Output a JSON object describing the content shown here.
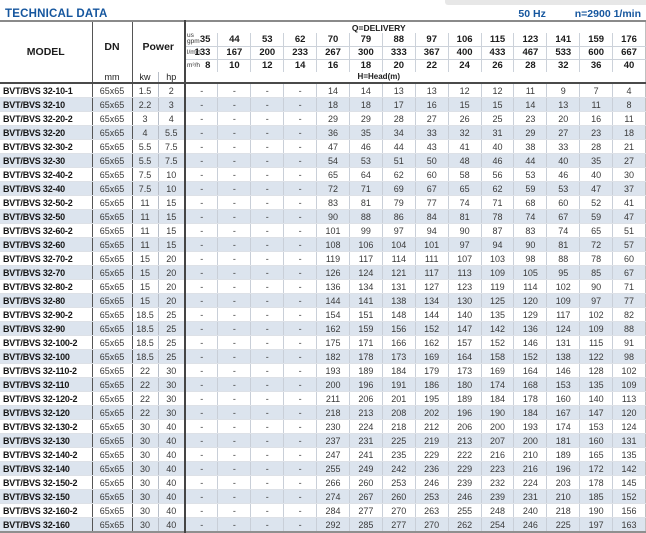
{
  "page": {
    "title": "TECHNICAL DATA",
    "frequency": "50 Hz",
    "speed": "n=2900 1/min",
    "accent_color": "#15569e"
  },
  "table": {
    "header": {
      "model": "MODEL",
      "dn": "DN",
      "power": "Power",
      "mm": "mm",
      "kw": "kw",
      "hp": "hp",
      "delivery_label": "Q=DELIVERY",
      "head_label": "H=Head(m)",
      "units": {
        "gpm": [
          "us",
          "gpm"
        ],
        "lmin": [
          "l/min"
        ],
        "m3h": [
          "m³/h"
        ]
      },
      "gpm": [
        35,
        44,
        53,
        62,
        70,
        79,
        88,
        97,
        106,
        115,
        123,
        141,
        159,
        176
      ],
      "lmin": [
        133,
        167,
        200,
        233,
        267,
        300,
        333,
        367,
        400,
        433,
        467,
        533,
        600,
        667
      ],
      "m3h": [
        8,
        10,
        12,
        14,
        16,
        18,
        20,
        22,
        24,
        26,
        28,
        32,
        36,
        40
      ]
    },
    "rows": [
      {
        "model": "BVT/BVS 32-10-1",
        "dn": "65x65",
        "kw": "1.5",
        "hp": "2",
        "heads": [
          "-",
          "-",
          "-",
          "-",
          14,
          14,
          13,
          13,
          12,
          12,
          11,
          9,
          7,
          4
        ]
      },
      {
        "model": "BVT/BVS 32-10",
        "dn": "65x65",
        "kw": "2.2",
        "hp": "3",
        "heads": [
          "-",
          "-",
          "-",
          "-",
          18,
          18,
          17,
          16,
          15,
          15,
          14,
          13,
          11,
          8
        ]
      },
      {
        "model": "BVT/BVS 32-20-2",
        "dn": "65x65",
        "kw": "3",
        "hp": "4",
        "heads": [
          "-",
          "-",
          "-",
          "-",
          29,
          29,
          28,
          27,
          26,
          25,
          23,
          20,
          16,
          11
        ]
      },
      {
        "model": "BVT/BVS 32-20",
        "dn": "65x65",
        "kw": "4",
        "hp": "5.5",
        "heads": [
          "-",
          "-",
          "-",
          "-",
          36,
          35,
          34,
          33,
          32,
          31,
          29,
          27,
          23,
          18
        ]
      },
      {
        "model": "BVT/BVS 32-30-2",
        "dn": "65x65",
        "kw": "5.5",
        "hp": "7.5",
        "heads": [
          "-",
          "-",
          "-",
          "-",
          47,
          46,
          44,
          43,
          41,
          40,
          38,
          33,
          28,
          21
        ]
      },
      {
        "model": "BVT/BVS 32-30",
        "dn": "65x65",
        "kw": "5.5",
        "hp": "7.5",
        "heads": [
          "-",
          "-",
          "-",
          "-",
          54,
          53,
          51,
          50,
          48,
          46,
          44,
          40,
          35,
          27
        ]
      },
      {
        "model": "BVT/BVS 32-40-2",
        "dn": "65x65",
        "kw": "7.5",
        "hp": "10",
        "heads": [
          "-",
          "-",
          "-",
          "-",
          65,
          64,
          62,
          60,
          58,
          56,
          53,
          46,
          40,
          30
        ]
      },
      {
        "model": "BVT/BVS 32-40",
        "dn": "65x65",
        "kw": "7.5",
        "hp": "10",
        "heads": [
          "-",
          "-",
          "-",
          "-",
          72,
          71,
          69,
          67,
          65,
          62,
          59,
          53,
          47,
          37
        ]
      },
      {
        "model": "BVT/BVS 32-50-2",
        "dn": "65x65",
        "kw": "11",
        "hp": "15",
        "heads": [
          "-",
          "-",
          "-",
          "-",
          83,
          81,
          79,
          77,
          74,
          71,
          68,
          60,
          52,
          41
        ]
      },
      {
        "model": "BVT/BVS 32-50",
        "dn": "65x65",
        "kw": "11",
        "hp": "15",
        "heads": [
          "-",
          "-",
          "-",
          "-",
          90,
          88,
          86,
          84,
          81,
          78,
          74,
          67,
          59,
          47
        ]
      },
      {
        "model": "BVT/BVS 32-60-2",
        "dn": "65x65",
        "kw": "11",
        "hp": "15",
        "heads": [
          "-",
          "-",
          "-",
          "-",
          101,
          99,
          97,
          94,
          90,
          87,
          83,
          74,
          65,
          51
        ]
      },
      {
        "model": "BVT/BVS 32-60",
        "dn": "65x65",
        "kw": "11",
        "hp": "15",
        "heads": [
          "-",
          "-",
          "-",
          "-",
          108,
          106,
          104,
          101,
          97,
          94,
          90,
          81,
          72,
          57
        ]
      },
      {
        "model": "BVT/BVS 32-70-2",
        "dn": "65x65",
        "kw": "15",
        "hp": "20",
        "heads": [
          "-",
          "-",
          "-",
          "-",
          119,
          117,
          114,
          111,
          107,
          103,
          98,
          88,
          78,
          60
        ]
      },
      {
        "model": "BVT/BVS 32-70",
        "dn": "65x65",
        "kw": "15",
        "hp": "20",
        "heads": [
          "-",
          "-",
          "-",
          "-",
          126,
          124,
          121,
          117,
          113,
          109,
          105,
          95,
          85,
          67
        ]
      },
      {
        "model": "BVT/BVS 32-80-2",
        "dn": "65x65",
        "kw": "15",
        "hp": "20",
        "heads": [
          "-",
          "-",
          "-",
          "-",
          136,
          134,
          131,
          127,
          123,
          119,
          114,
          102,
          90,
          71
        ]
      },
      {
        "model": "BVT/BVS 32-80",
        "dn": "65x65",
        "kw": "15",
        "hp": "20",
        "heads": [
          "-",
          "-",
          "-",
          "-",
          144,
          141,
          138,
          134,
          130,
          125,
          120,
          109,
          97,
          77
        ]
      },
      {
        "model": "BVT/BVS 32-90-2",
        "dn": "65x65",
        "kw": "18.5",
        "hp": "25",
        "heads": [
          "-",
          "-",
          "-",
          "-",
          154,
          151,
          148,
          144,
          140,
          135,
          129,
          117,
          102,
          82
        ]
      },
      {
        "model": "BVT/BVS 32-90",
        "dn": "65x65",
        "kw": "18.5",
        "hp": "25",
        "heads": [
          "-",
          "-",
          "-",
          "-",
          162,
          159,
          156,
          152,
          147,
          142,
          136,
          124,
          109,
          88
        ]
      },
      {
        "model": "BVT/BVS 32-100-2",
        "dn": "65x65",
        "kw": "18.5",
        "hp": "25",
        "heads": [
          "-",
          "-",
          "-",
          "-",
          175,
          171,
          166,
          162,
          157,
          152,
          146,
          131,
          115,
          91
        ]
      },
      {
        "model": "BVT/BVS 32-100",
        "dn": "65x65",
        "kw": "18.5",
        "hp": "25",
        "heads": [
          "-",
          "-",
          "-",
          "-",
          182,
          178,
          173,
          169,
          164,
          158,
          152,
          138,
          122,
          98
        ]
      },
      {
        "model": "BVT/BVS 32-110-2",
        "dn": "65x65",
        "kw": "22",
        "hp": "30",
        "heads": [
          "-",
          "-",
          "-",
          "-",
          193,
          189,
          184,
          179,
          173,
          169,
          164,
          146,
          128,
          102
        ]
      },
      {
        "model": "BVT/BVS 32-110",
        "dn": "65x65",
        "kw": "22",
        "hp": "30",
        "heads": [
          "-",
          "-",
          "-",
          "-",
          200,
          196,
          191,
          186,
          180,
          174,
          168,
          153,
          135,
          109
        ]
      },
      {
        "model": "BVT/BVS 32-120-2",
        "dn": "65x65",
        "kw": "22",
        "hp": "30",
        "heads": [
          "-",
          "-",
          "-",
          "-",
          211,
          206,
          201,
          195,
          189,
          184,
          178,
          160,
          140,
          113
        ]
      },
      {
        "model": "BVT/BVS 32-120",
        "dn": "65x65",
        "kw": "22",
        "hp": "30",
        "heads": [
          "-",
          "-",
          "-",
          "-",
          218,
          213,
          208,
          202,
          196,
          190,
          184,
          167,
          147,
          120
        ]
      },
      {
        "model": "BVT/BVS 32-130-2",
        "dn": "65x65",
        "kw": "30",
        "hp": "40",
        "heads": [
          "-",
          "-",
          "-",
          "-",
          230,
          224,
          218,
          212,
          206,
          200,
          193,
          174,
          153,
          124
        ]
      },
      {
        "model": "BVT/BVS 32-130",
        "dn": "65x65",
        "kw": "30",
        "hp": "40",
        "heads": [
          "-",
          "-",
          "-",
          "-",
          237,
          231,
          225,
          219,
          213,
          207,
          200,
          181,
          160,
          131
        ]
      },
      {
        "model": "BVT/BVS 32-140-2",
        "dn": "65x65",
        "kw": "30",
        "hp": "40",
        "heads": [
          "-",
          "-",
          "-",
          "-",
          247,
          241,
          235,
          229,
          222,
          216,
          210,
          189,
          165,
          135
        ]
      },
      {
        "model": "BVT/BVS 32-140",
        "dn": "65x65",
        "kw": "30",
        "hp": "40",
        "heads": [
          "-",
          "-",
          "-",
          "-",
          255,
          249,
          242,
          236,
          229,
          223,
          216,
          196,
          172,
          142
        ]
      },
      {
        "model": "BVT/BVS 32-150-2",
        "dn": "65x65",
        "kw": "30",
        "hp": "40",
        "heads": [
          "-",
          "-",
          "-",
          "-",
          266,
          260,
          253,
          246,
          239,
          232,
          224,
          203,
          178,
          145
        ]
      },
      {
        "model": "BVT/BVS 32-150",
        "dn": "65x65",
        "kw": "30",
        "hp": "40",
        "heads": [
          "-",
          "-",
          "-",
          "-",
          274,
          267,
          260,
          253,
          246,
          239,
          231,
          210,
          185,
          152
        ]
      },
      {
        "model": "BVT/BVS 32-160-2",
        "dn": "65x65",
        "kw": "30",
        "hp": "40",
        "heads": [
          "-",
          "-",
          "-",
          "-",
          284,
          277,
          270,
          263,
          255,
          248,
          240,
          218,
          190,
          156
        ]
      },
      {
        "model": "BVT/BVS 32-160",
        "dn": "65x65",
        "kw": "30",
        "hp": "40",
        "heads": [
          "-",
          "-",
          "-",
          "-",
          292,
          285,
          277,
          270,
          262,
          254,
          246,
          225,
          197,
          163
        ]
      }
    ]
  }
}
